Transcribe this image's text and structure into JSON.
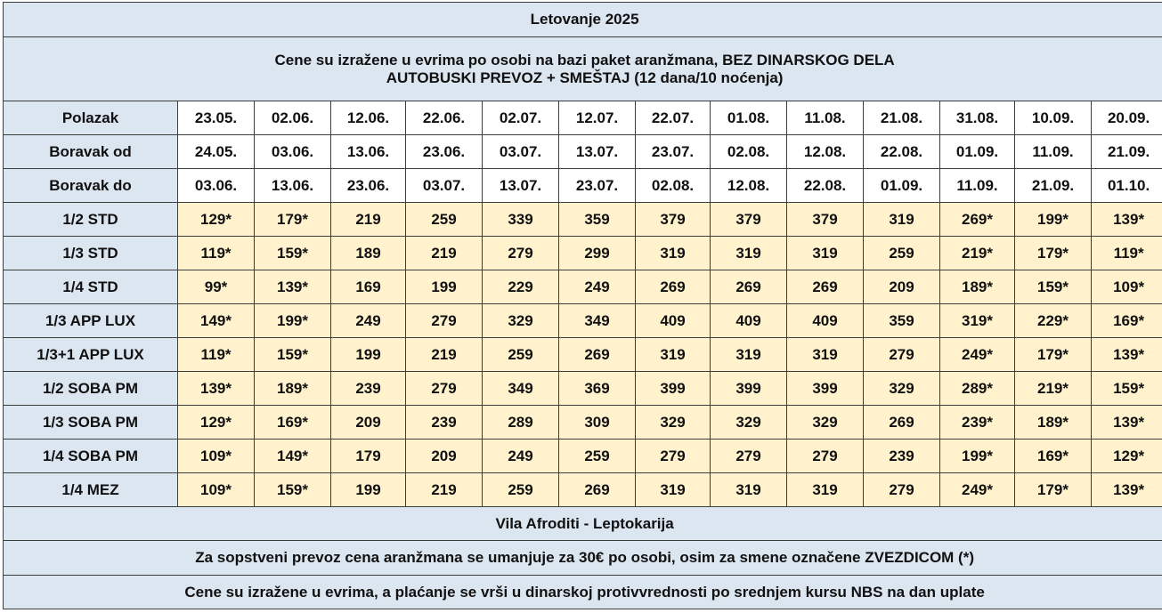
{
  "title": "Letovanje 2025",
  "subtitle_line1": "Cene su izražene u evrima po osobi na bazi paket aranžmana, BEZ DINARSKOG DELA",
  "subtitle_line2": "AUTOBUSKI PREVOZ + SMEŠTAJ (12 dana/10 noćenja)",
  "date_rows": [
    {
      "label": "Polazak",
      "values": [
        "23.05.",
        "02.06.",
        "12.06.",
        "22.06.",
        "02.07.",
        "12.07.",
        "22.07.",
        "01.08.",
        "11.08.",
        "21.08.",
        "31.08.",
        "10.09.",
        "20.09."
      ]
    },
    {
      "label": "Boravak od",
      "values": [
        "24.05.",
        "03.06.",
        "13.06.",
        "23.06.",
        "03.07.",
        "13.07.",
        "23.07.",
        "02.08.",
        "12.08.",
        "22.08.",
        "01.09.",
        "11.09.",
        "21.09."
      ]
    },
    {
      "label": "Boravak do",
      "values": [
        "03.06.",
        "13.06.",
        "23.06.",
        "03.07.",
        "13.07.",
        "23.07.",
        "02.08.",
        "12.08.",
        "22.08.",
        "01.09.",
        "11.09.",
        "21.09.",
        "01.10."
      ]
    }
  ],
  "price_rows": [
    {
      "label": "1/2 STD",
      "values": [
        "129*",
        "179*",
        "219",
        "259",
        "339",
        "359",
        "379",
        "379",
        "379",
        "319",
        "269*",
        "199*",
        "139*"
      ]
    },
    {
      "label": "1/3 STD",
      "values": [
        "119*",
        "159*",
        "189",
        "219",
        "279",
        "299",
        "319",
        "319",
        "319",
        "259",
        "219*",
        "179*",
        "119*"
      ]
    },
    {
      "label": "1/4 STD",
      "values": [
        "99*",
        "139*",
        "169",
        "199",
        "229",
        "249",
        "269",
        "269",
        "269",
        "209",
        "189*",
        "159*",
        "109*"
      ]
    },
    {
      "label": "1/3 APP LUX",
      "values": [
        "149*",
        "199*",
        "249",
        "279",
        "329",
        "349",
        "409",
        "409",
        "409",
        "359",
        "319*",
        "229*",
        "169*"
      ]
    },
    {
      "label": "1/3+1 APP LUX",
      "values": [
        "119*",
        "159*",
        "199",
        "219",
        "259",
        "269",
        "319",
        "319",
        "319",
        "279",
        "249*",
        "179*",
        "139*"
      ]
    },
    {
      "label": "1/2 SOBA PM",
      "values": [
        "139*",
        "189*",
        "239",
        "279",
        "349",
        "369",
        "399",
        "399",
        "399",
        "329",
        "289*",
        "219*",
        "159*"
      ]
    },
    {
      "label": "1/3 SOBA PM",
      "values": [
        "129*",
        "169*",
        "209",
        "239",
        "289",
        "309",
        "329",
        "329",
        "329",
        "269",
        "239*",
        "189*",
        "139*"
      ]
    },
    {
      "label": "1/4 SOBA PM",
      "values": [
        "109*",
        "149*",
        "179",
        "209",
        "249",
        "259",
        "279",
        "279",
        "279",
        "239",
        "199*",
        "169*",
        "129*"
      ]
    },
    {
      "label": "1/4 MEZ",
      "values": [
        "109*",
        "159*",
        "199",
        "219",
        "259",
        "269",
        "319",
        "319",
        "319",
        "279",
        "249*",
        "179*",
        "139*"
      ]
    }
  ],
  "footer": {
    "location": "Vila Afroditi - Leptokarija",
    "note_transport": "Za sopstveni prevoz cena aranžmana se umanjuje za 30€ po osobi, osim za smene označene ZVEZDICOM (*)",
    "note_payment": "Cene su izražene u evrima, a plaćanje se vrši u dinarskoj protivvrednosti po srednjem kursu NBS na dan uplate"
  }
}
